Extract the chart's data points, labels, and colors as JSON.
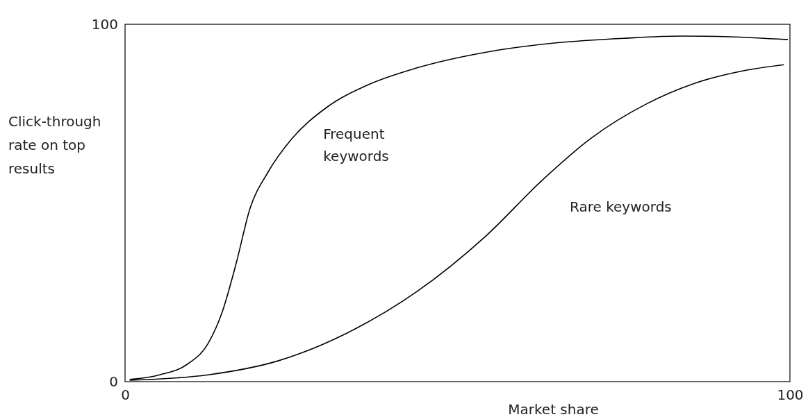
{
  "chart_data": {
    "type": "line",
    "xlabel": "Market share",
    "ylabel": "Click-through rate on top results",
    "xlim": [
      0,
      100
    ],
    "ylim": [
      0,
      100
    ],
    "xticks": [
      0,
      100
    ],
    "yticks": [
      0,
      100
    ],
    "grid": false,
    "legend": false,
    "marker": "none",
    "line_style": "solid",
    "series": [
      {
        "name": "Frequent keywords",
        "color": "#000000",
        "x": [
          0.7,
          5.2,
          9.4,
          12.5,
          14.6,
          16.7,
          18.8,
          21.4,
          25.1,
          30.3,
          36.6,
          43.9,
          54.3,
          64.8,
          75.2,
          83.6,
          90.9,
          99.7
        ],
        "values": [
          0.6,
          1.9,
          4.9,
          10.7,
          19.4,
          33.0,
          48.5,
          58.3,
          68.0,
          76.7,
          83.1,
          87.8,
          92.2,
          94.8,
          96.1,
          96.7,
          96.5,
          95.7
        ]
      },
      {
        "name": "Rare keywords",
        "color": "#000000",
        "x": [
          0.7,
          12.5,
          23.0,
          33.4,
          43.9,
          54.3,
          62.7,
          70.0,
          78.4,
          85.7,
          93.0,
          99.1
        ],
        "values": [
          0.4,
          1.9,
          5.8,
          13.6,
          25.2,
          40.8,
          56.3,
          68.0,
          77.7,
          83.5,
          87.0,
          88.7
        ]
      }
    ]
  }
}
